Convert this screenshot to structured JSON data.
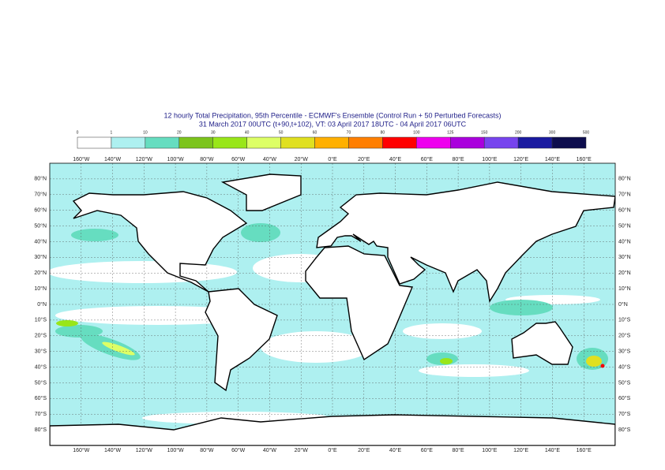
{
  "header": {
    "title": "12 hourly Total Precipitation, 95th Percentile - ECMWF's Ensemble (Control Run + 50 Perturbed Forecasts)",
    "subtitle": "31 March 2017 00UTC (t+90,t+102), VT: 03 April 2017 18UTC - 04 April 2017 06UTC"
  },
  "colorbar": {
    "levels": [
      0,
      1,
      10,
      20,
      30,
      40,
      50,
      60,
      70,
      80,
      100,
      125,
      150,
      200,
      300,
      500
    ],
    "colors": [
      "#ffffff",
      "#aef0f0",
      "#66ddc0",
      "#7cc41c",
      "#99e619",
      "#ddff66",
      "#e0e020",
      "#ffb000",
      "#ff7f00",
      "#ff0000",
      "#ee00ee",
      "#aa00dd",
      "#7744ee",
      "#1a1aa0",
      "#0d0d4d"
    ]
  },
  "map": {
    "lon_labels": [
      "160°W",
      "140°W",
      "120°W",
      "100°W",
      "80°W",
      "60°W",
      "40°W",
      "20°W",
      "0°E",
      "20°E",
      "40°E",
      "60°E",
      "80°E",
      "100°E",
      "120°E",
      "140°E",
      "160°E"
    ],
    "lat_labels": [
      "80°N",
      "70°N",
      "60°N",
      "50°N",
      "40°N",
      "30°N",
      "20°N",
      "10°N",
      "0°N",
      "10°S",
      "20°S",
      "30°S",
      "40°S",
      "50°S",
      "60°S",
      "70°S",
      "80°S"
    ]
  }
}
